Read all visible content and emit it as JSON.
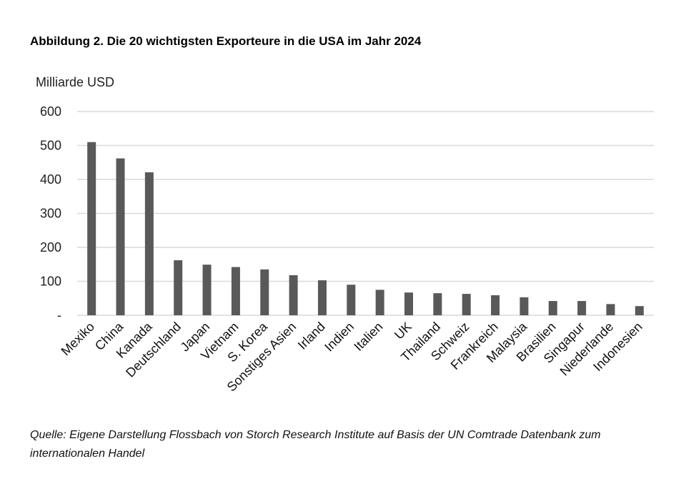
{
  "chart_data": {
    "type": "bar",
    "title": "Abbildung 2. Die 20 wichtigsten Exporteure in die USA im Jahr 2024",
    "ylabel": "Milliarde USD",
    "xlabel": "",
    "ylim": [
      0,
      600
    ],
    "yticks": [
      0,
      100,
      200,
      300,
      400,
      500,
      600
    ],
    "ytick_labels": [
      "-",
      "100",
      "200",
      "300",
      "400",
      "500",
      "600"
    ],
    "grid": true,
    "bar_color": "#595959",
    "grid_color": "#d9d9d9",
    "categories": [
      "Mexiko",
      "China",
      "Kanada",
      "Deutschland",
      "Japan",
      "Vietnam",
      "S. Korea",
      "Sonstiges Asien",
      "Irland",
      "Indien",
      "Italien",
      "UK",
      "Thailand",
      "Schweiz",
      "Frankreich",
      "Malaysia",
      "Brasilien",
      "Singapur",
      "Niederlande",
      "Indonesien"
    ],
    "values": [
      510,
      462,
      421,
      162,
      149,
      142,
      135,
      118,
      103,
      90,
      75,
      67,
      65,
      63,
      59,
      53,
      42,
      42,
      33,
      27
    ]
  },
  "source": "Quelle: Eigene Darstellung Flossbach von Storch Research Institute auf Basis der UN Comtrade Datenbank zum internationalen Handel"
}
